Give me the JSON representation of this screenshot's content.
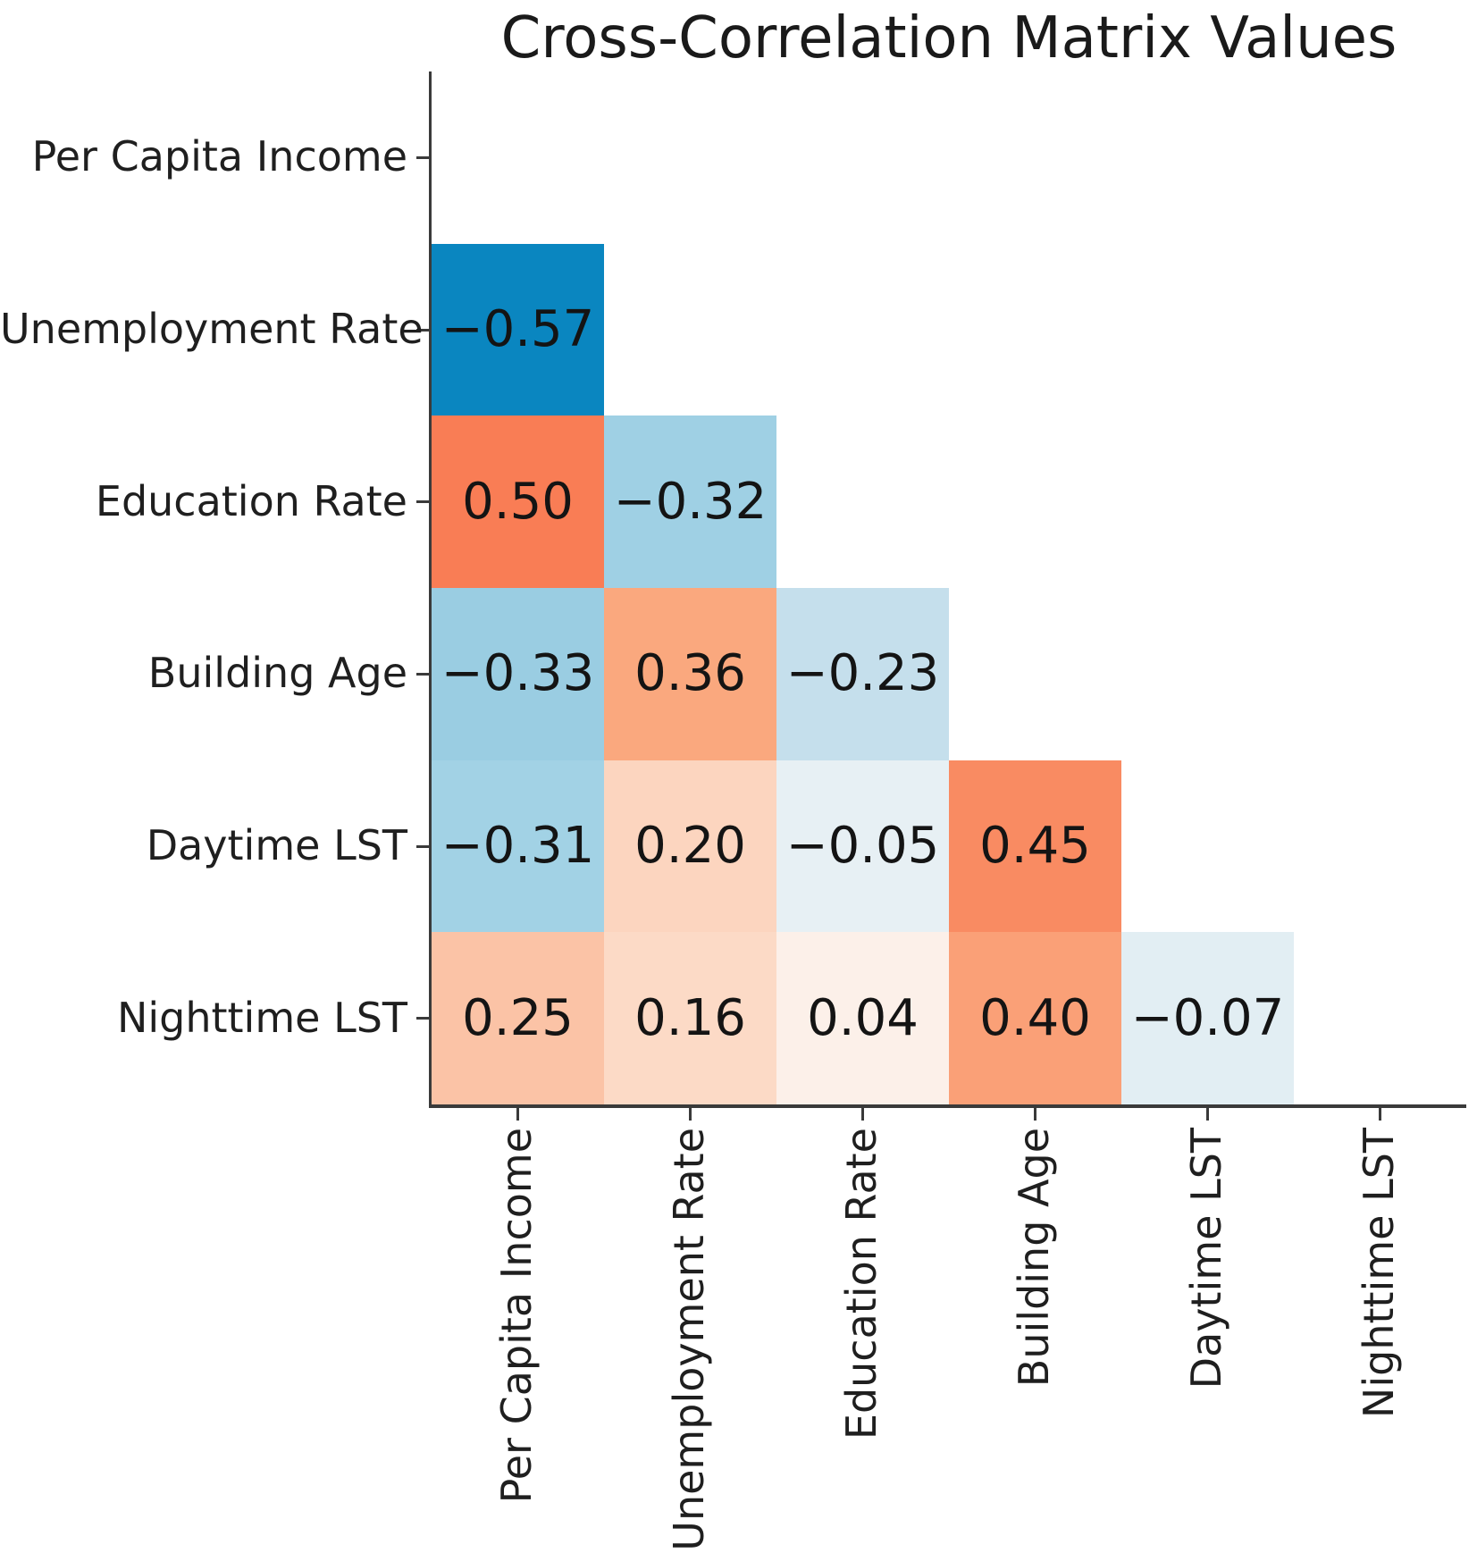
{
  "chart_data": {
    "type": "heatmap",
    "title": "Cross-Correlation Matrix Values",
    "subtitle": "",
    "variables": [
      "Per Capita Income",
      "Unemployment Rate",
      "Education Rate",
      "Building Age",
      "Daytime LST",
      "Nighttime LST"
    ],
    "x_tick_labels": [
      "Per Capita Income",
      "Unemployment Rate",
      "Education Rate",
      "Building Age",
      "Daytime LST",
      "Nighttime LST"
    ],
    "y_tick_labels": [
      "Per Capita Income",
      "Unemployment Rate",
      "Education Rate",
      "Building Age",
      "Daytime LST",
      "Nighttime LST"
    ],
    "shape": "lower-triangle-without-diagonal",
    "grid": false,
    "legend": "none",
    "colormap": "diverging: blue for negative, white near zero, orange-red for positive",
    "colors": {
      "background": "#ffffff",
      "axis": "#3a3a3a",
      "text": "#1a1a1a"
    },
    "cells": [
      {
        "row_index": 1,
        "col_index": 0,
        "row": "Unemployment Rate",
        "col": "Per Capita Income",
        "value": -0.57,
        "label": "−0.57",
        "color": "#0a86c0"
      },
      {
        "row_index": 2,
        "col_index": 0,
        "row": "Education Rate",
        "col": "Per Capita Income",
        "value": 0.5,
        "label": "0.50",
        "color": "#f97d55"
      },
      {
        "row_index": 2,
        "col_index": 1,
        "row": "Education Rate",
        "col": "Unemployment Rate",
        "value": -0.32,
        "label": "−0.32",
        "color": "#9fd0e4"
      },
      {
        "row_index": 3,
        "col_index": 0,
        "row": "Building Age",
        "col": "Per Capita Income",
        "value": -0.33,
        "label": "−0.33",
        "color": "#9acde2"
      },
      {
        "row_index": 3,
        "col_index": 1,
        "row": "Building Age",
        "col": "Unemployment Rate",
        "value": 0.36,
        "label": "0.36",
        "color": "#faa87e"
      },
      {
        "row_index": 3,
        "col_index": 2,
        "row": "Building Age",
        "col": "Education Rate",
        "value": -0.23,
        "label": "−0.23",
        "color": "#c5dfec"
      },
      {
        "row_index": 4,
        "col_index": 0,
        "row": "Daytime LST",
        "col": "Per Capita Income",
        "value": -0.31,
        "label": "−0.31",
        "color": "#a2d2e5"
      },
      {
        "row_index": 4,
        "col_index": 1,
        "row": "Daytime LST",
        "col": "Unemployment Rate",
        "value": 0.2,
        "label": "0.20",
        "color": "#fcd5bf"
      },
      {
        "row_index": 4,
        "col_index": 2,
        "row": "Daytime LST",
        "col": "Education Rate",
        "value": -0.05,
        "label": "−0.05",
        "color": "#e7f0f4"
      },
      {
        "row_index": 4,
        "col_index": 3,
        "row": "Daytime LST",
        "col": "Building Age",
        "value": 0.45,
        "label": "0.45",
        "color": "#f98b62"
      },
      {
        "row_index": 5,
        "col_index": 0,
        "row": "Nighttime LST",
        "col": "Per Capita Income",
        "value": 0.25,
        "label": "0.25",
        "color": "#fbc3a6"
      },
      {
        "row_index": 5,
        "col_index": 1,
        "row": "Nighttime LST",
        "col": "Unemployment Rate",
        "value": 0.16,
        "label": "0.16",
        "color": "#fcdac6"
      },
      {
        "row_index": 5,
        "col_index": 2,
        "row": "Nighttime LST",
        "col": "Education Rate",
        "value": 0.04,
        "label": "0.04",
        "color": "#fcf0e9"
      },
      {
        "row_index": 5,
        "col_index": 3,
        "row": "Nighttime LST",
        "col": "Building Age",
        "value": 0.4,
        "label": "0.40",
        "color": "#faa077"
      },
      {
        "row_index": 5,
        "col_index": 4,
        "row": "Nighttime LST",
        "col": "Daytime LST",
        "value": -0.07,
        "label": "−0.07",
        "color": "#e2eef3"
      }
    ]
  }
}
